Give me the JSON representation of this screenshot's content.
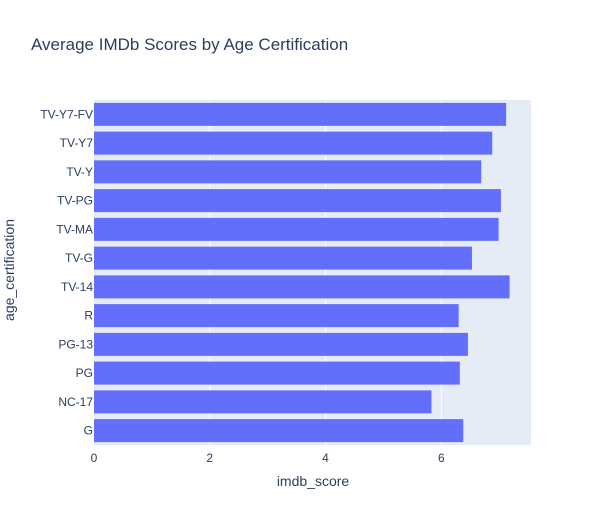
{
  "chart_data": {
    "type": "bar",
    "orientation": "horizontal",
    "title": "Average IMDb Scores by Age Certification",
    "xlabel": "imdb_score",
    "ylabel": "age_certification",
    "xlim": [
      0,
      7.55
    ],
    "xticks": [
      0,
      2,
      4,
      6
    ],
    "grid": true,
    "categories": [
      "TV-Y7-FV",
      "TV-Y7",
      "TV-Y",
      "TV-PG",
      "TV-MA",
      "TV-G",
      "TV-14",
      "R",
      "PG-13",
      "PG",
      "NC-17",
      "G"
    ],
    "values": [
      7.12,
      6.88,
      6.69,
      7.03,
      6.99,
      6.53,
      7.18,
      6.3,
      6.46,
      6.32,
      5.83,
      6.38
    ],
    "colors": {
      "bar": "#636efa",
      "plot_background": "#e5ecf6",
      "gridline": "#ffffff",
      "text": "#2a3f5f"
    }
  }
}
